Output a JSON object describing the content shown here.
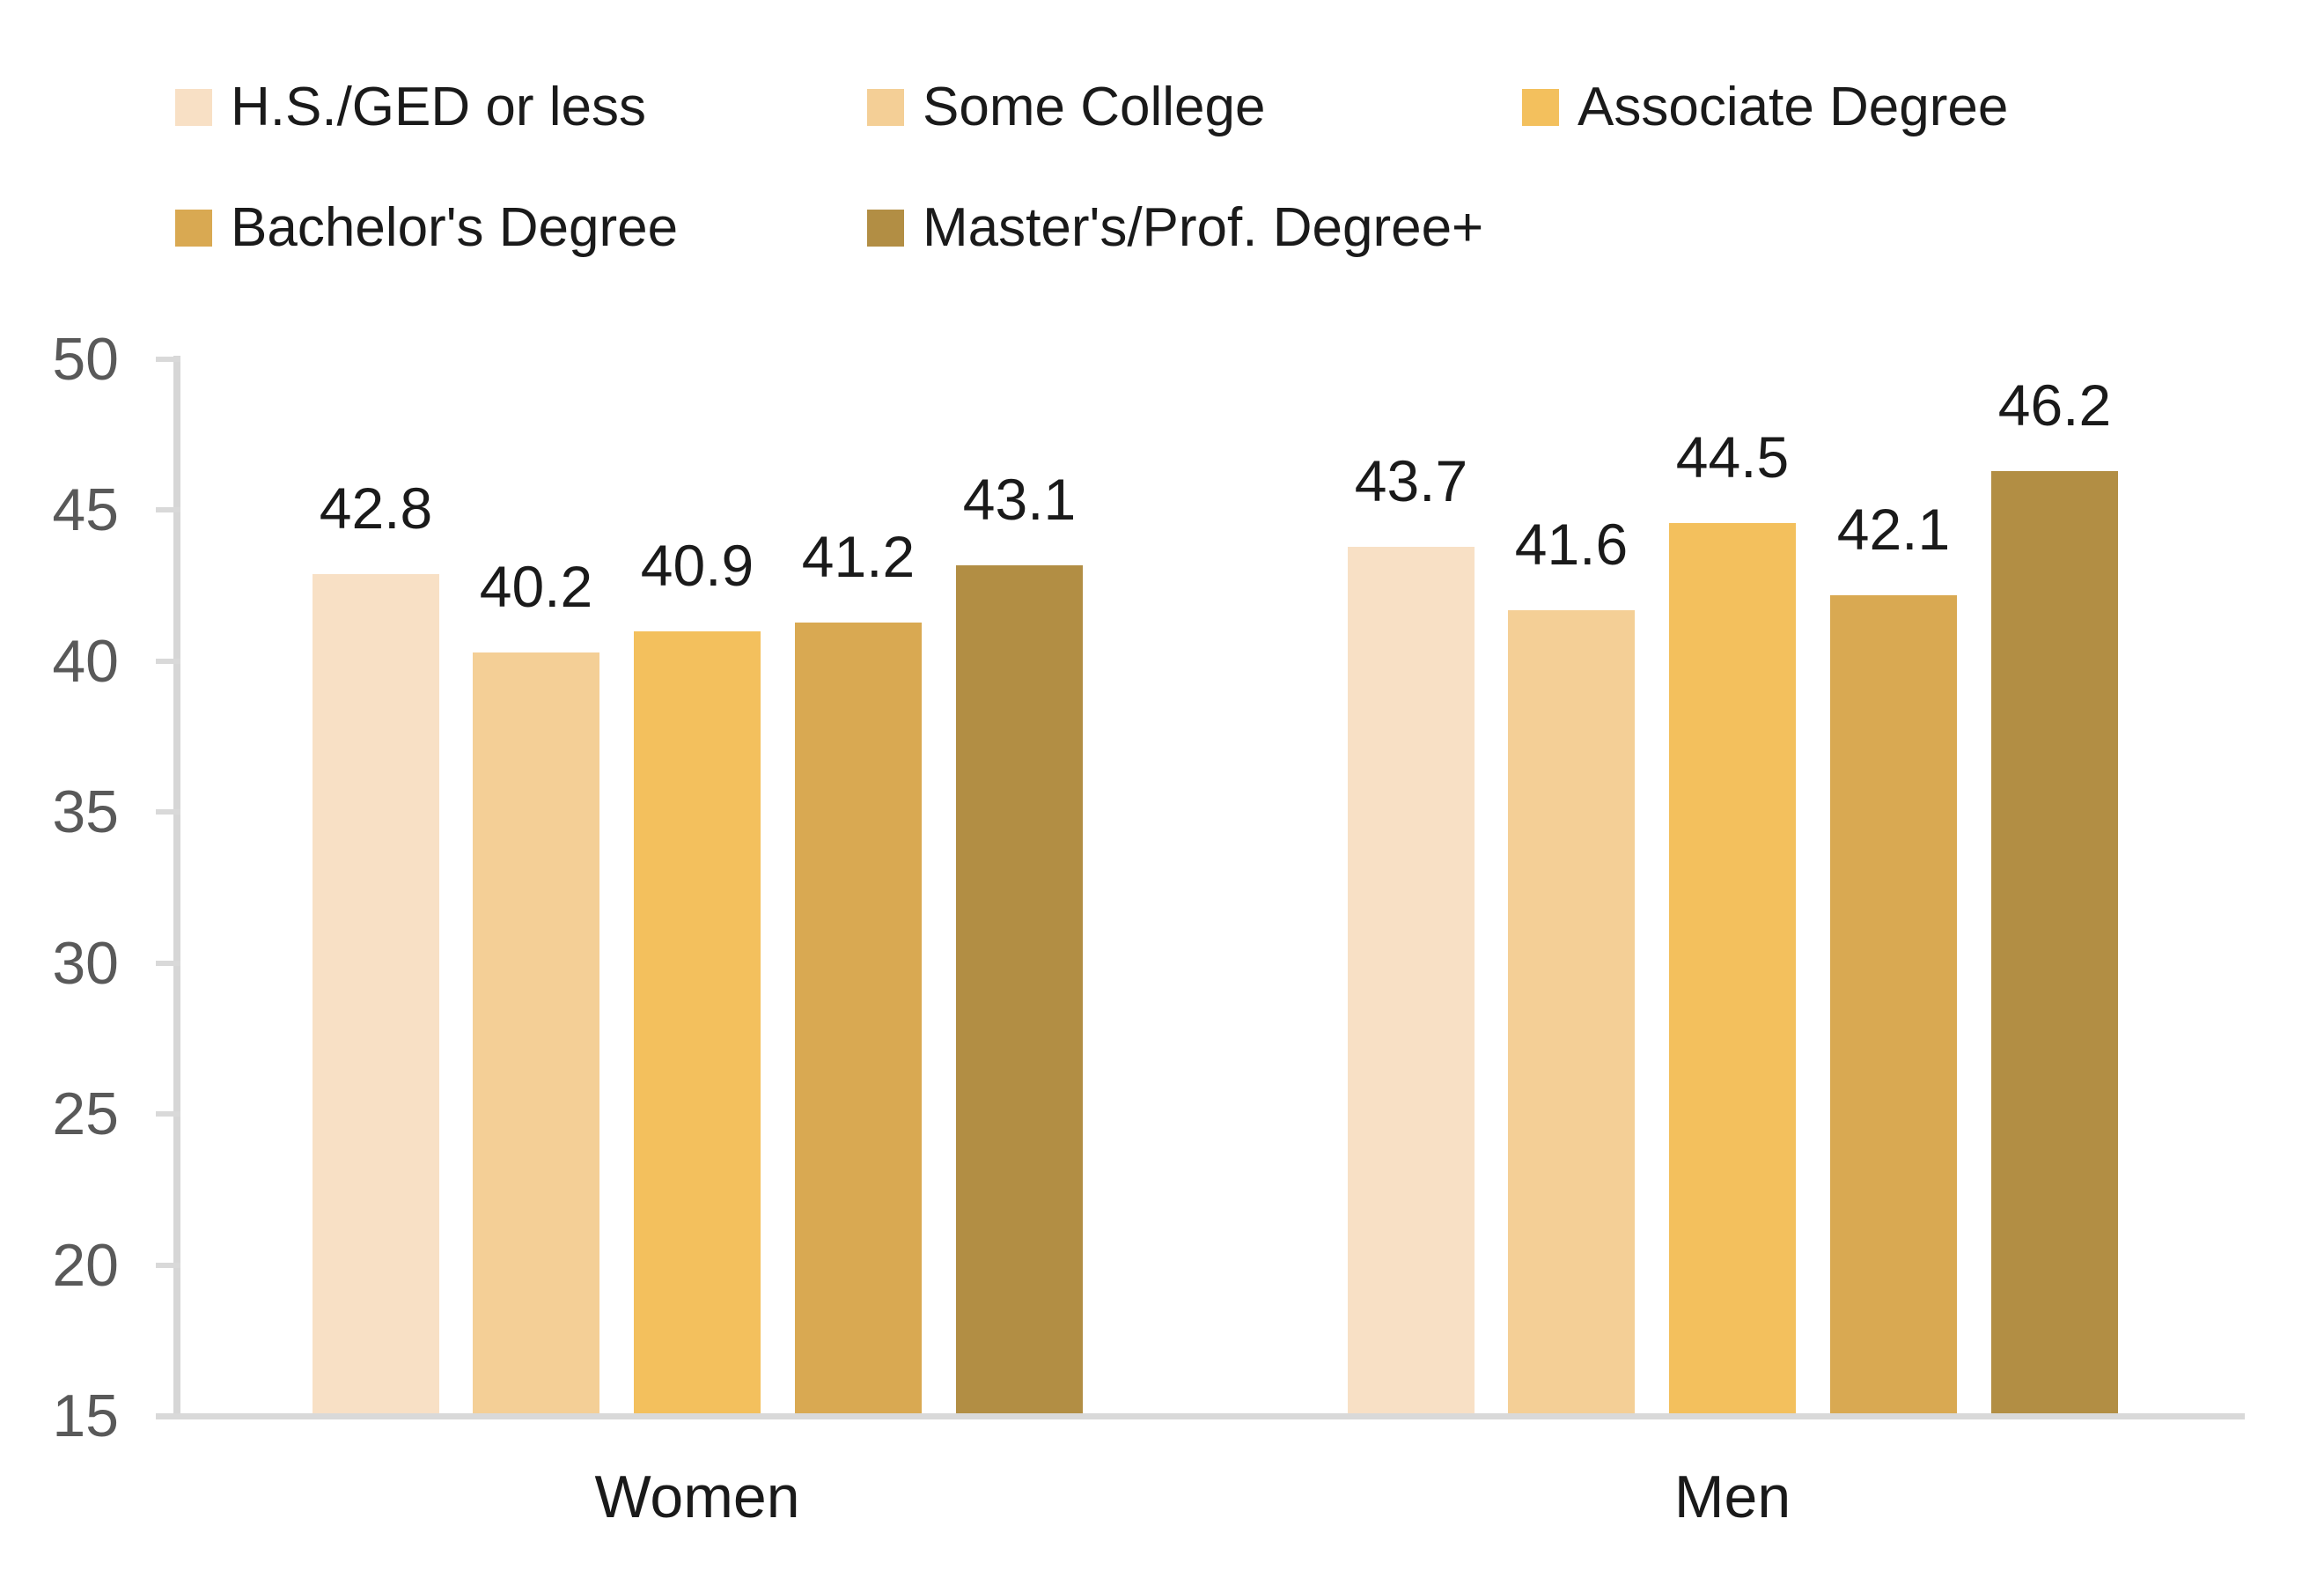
{
  "chart_data": {
    "type": "bar",
    "title": "",
    "xlabel": "",
    "ylabel": "",
    "categories": [
      "Women",
      "Men"
    ],
    "series": [
      {
        "name": "H.S./GED or less",
        "color": "#F8E0C5",
        "values": [
          42.8,
          43.7
        ]
      },
      {
        "name": "Some College",
        "color": "#F4CF96",
        "values": [
          40.2,
          41.6
        ]
      },
      {
        "name": "Associate Degree",
        "color": "#F3C05D",
        "values": [
          40.9,
          44.5
        ]
      },
      {
        "name": "Bachelor's Degree",
        "color": "#D9A952",
        "values": [
          41.2,
          42.1
        ]
      },
      {
        "name": "Master's/Prof. Degree+",
        "color": "#B28E44",
        "values": [
          43.1,
          46.2
        ]
      }
    ],
    "data_labels": [
      "42.8",
      "40.2",
      "40.9",
      "41.2",
      "43.1",
      "43.7",
      "41.6",
      "44.5",
      "42.1",
      "46.2"
    ],
    "ylim": [
      15,
      50
    ],
    "ytick_step": 5,
    "ytick_labels": [
      "15",
      "20",
      "25",
      "30",
      "35",
      "40",
      "45",
      "50"
    ],
    "grid": false,
    "legend_position": "top-left",
    "colors": {
      "axis_line": "#D9D9D9",
      "tick_label": "#595959",
      "text": "#1A1A1A",
      "background": "#FFFFFF"
    }
  }
}
